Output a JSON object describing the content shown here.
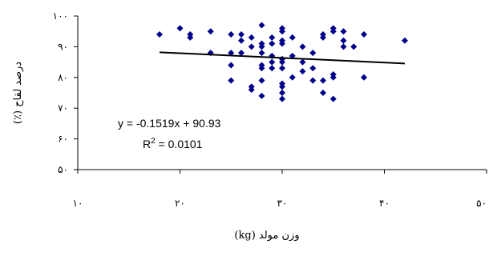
{
  "chart_data": {
    "type": "scatter",
    "xlabel": "وزن مولد (kg)",
    "ylabel": "درصد لقاح (٪)",
    "xlim": [
      10,
      50
    ],
    "ylim": [
      50,
      100
    ],
    "xticks": [
      10,
      20,
      30,
      40,
      50
    ],
    "yticks": [
      50,
      60,
      70,
      80,
      90,
      100
    ],
    "xtick_labels": [
      "۱۰",
      "۲۰",
      "۳۰",
      "۴۰",
      "۵۰"
    ],
    "ytick_labels": [
      "۵۰",
      "۶۰",
      "۷۰",
      "۸۰",
      "۹۰",
      "۱۰۰"
    ],
    "grid": false,
    "legend": "none",
    "marker_color": "#00008B",
    "trendline_color": "#000000",
    "series": [
      {
        "x": [
          18,
          20,
          21,
          21,
          23,
          23,
          25,
          25,
          25,
          25,
          26,
          26,
          26,
          27,
          27,
          27,
          27,
          28,
          28,
          28,
          28,
          28,
          28,
          28,
          28,
          29,
          29,
          29,
          29,
          29,
          30,
          30,
          30,
          30,
          30,
          30,
          30,
          30,
          30,
          30,
          30,
          31,
          31,
          31,
          32,
          32,
          32,
          33,
          33,
          33,
          34,
          34,
          34,
          34,
          35,
          35,
          35,
          35,
          35,
          36,
          36,
          36,
          37,
          38,
          38,
          42
        ],
        "y": [
          94,
          96,
          94,
          93,
          95,
          88,
          94,
          88,
          84,
          79,
          94,
          92,
          88,
          93,
          90,
          77,
          76,
          97,
          91,
          90,
          88,
          84,
          83,
          79,
          74,
          93,
          91,
          87,
          85,
          83,
          96,
          95,
          92,
          91,
          86,
          85,
          83,
          78,
          77,
          75,
          73,
          93,
          87,
          80,
          90,
          85,
          82,
          88,
          83,
          79,
          94,
          93,
          79,
          75,
          96,
          95,
          81,
          80,
          73,
          95,
          92,
          90,
          90,
          94,
          80,
          92
        ]
      }
    ],
    "trendline": {
      "slope": -0.1519,
      "intercept": 90.93,
      "x_range": [
        18,
        42
      ]
    },
    "annotations": [
      "y = -0.1519x + 90.93",
      "R",
      "2",
      " = 0.0101"
    ]
  }
}
